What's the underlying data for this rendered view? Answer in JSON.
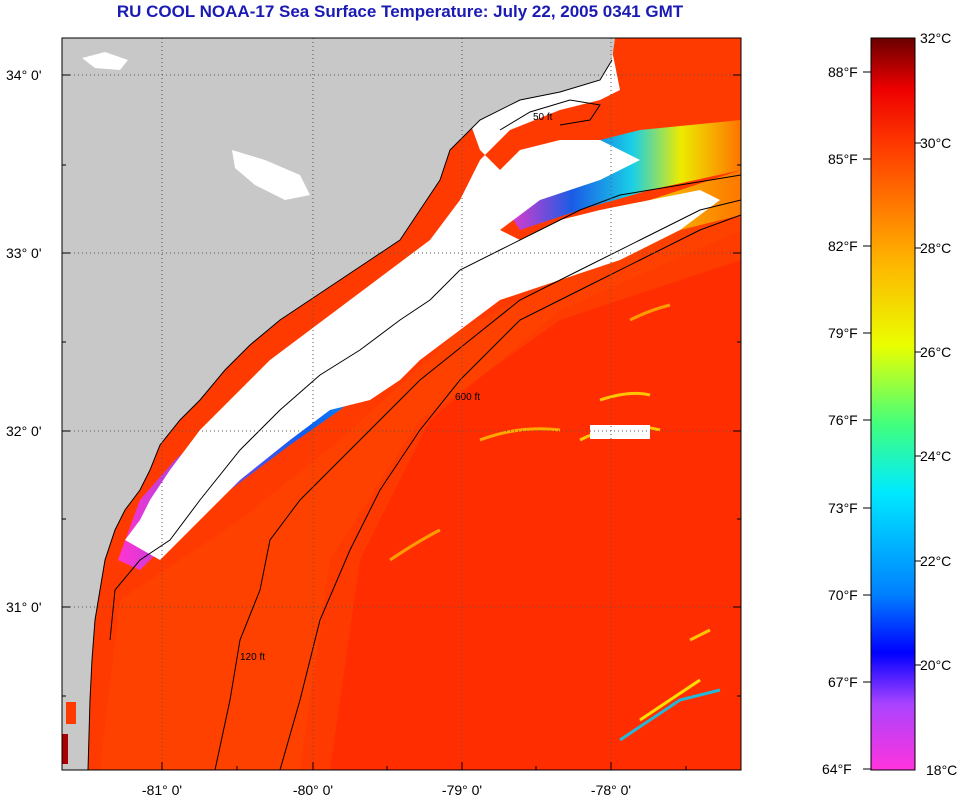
{
  "title": "RU COOL  NOAA-17  Sea Surface Temperature:  July 22, 2005 0341 GMT",
  "map": {
    "lat_labels": [
      "34° 0'",
      "33° 0'",
      "32° 0'",
      "31° 0'"
    ],
    "lon_labels": [
      "-81° 0'",
      "-80° 0'",
      "-79° 0'",
      "-78° 0'"
    ],
    "contour_labels": [
      "50 ft",
      "120 ft",
      "600 ft"
    ],
    "colors": {
      "land": "#c8c8c8",
      "no_data": "#ffffff",
      "contour": "#000000"
    }
  },
  "colorbar": {
    "fahrenheit_labels": [
      "88°F",
      "85°F",
      "82°F",
      "79°F",
      "76°F",
      "73°F",
      "70°F",
      "67°F",
      "64°F"
    ],
    "celsius_labels": [
      "32°C",
      "30°C",
      "28°C",
      "26°C",
      "24°C",
      "22°C",
      "20°C",
      "18°C"
    ],
    "range_c": [
      18,
      32
    ],
    "colors": [
      "#ff33dd",
      "#aa44ff",
      "#0000ff",
      "#0080ff",
      "#00eaff",
      "#3fff80",
      "#eaff00",
      "#ffb000",
      "#ff3c00",
      "#ee0000",
      "#6a0000"
    ]
  }
}
